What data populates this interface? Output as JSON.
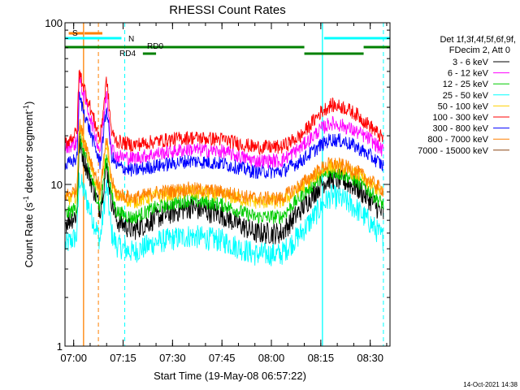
{
  "chart_data": {
    "type": "line",
    "title": "RHESSI Count Rates",
    "xlabel": "Start Time (19-May-08 06:57:22)",
    "ylabel_prefix": "Count Rate (s",
    "ylabel_sup1": "-1",
    "ylabel_mid": " detector segment",
    "ylabel_sup2": "-1",
    "ylabel_suffix": ")",
    "y_scale": "log",
    "ylim": [
      1,
      100
    ],
    "xlim": [
      "06:57:22",
      "08:36:00"
    ],
    "x_ticks": [
      "07:00",
      "07:15",
      "07:30",
      "07:45",
      "08:00",
      "08:15",
      "08:30"
    ],
    "y_ticks": [
      "1",
      "10",
      "100"
    ],
    "legend_header_1": "Det 1f,3f,4f,5f,6f,9f,",
    "legend_header_2": "FDecim 2, Att 0",
    "legend_position": "right",
    "footer_timestamp": "14-Oct-2021 14:38",
    "series": [
      {
        "name": "3 - 6 keV",
        "color": "#000000",
        "key_times": [
          "06:57:30",
          "07:01:00",
          "07:01:40",
          "07:08:00",
          "07:10:00",
          "07:11:30",
          "07:13:00",
          "07:18:00",
          "07:25:00",
          "07:35:00",
          "07:45:00",
          "07:55:00",
          "08:03:00",
          "08:09:00",
          "08:15:00",
          "08:18:00",
          "08:22:00",
          "08:26:00",
          "08:30:00",
          "08:34:00"
        ],
        "values": [
          5.8,
          6.5,
          18,
          7,
          13,
          8,
          6,
          5.2,
          6.2,
          7.2,
          6.5,
          5,
          5,
          7,
          10,
          11,
          10.5,
          9.5,
          8,
          6.5
        ]
      },
      {
        "name": "6 - 12 keV",
        "color": "#ff00ff",
        "key_times": [
          "06:57:30",
          "07:01:00",
          "07:01:40",
          "07:08:00",
          "07:10:00",
          "07:11:30",
          "07:13:00",
          "07:18:00",
          "07:25:00",
          "07:35:00",
          "07:45:00",
          "07:55:00",
          "08:03:00",
          "08:09:00",
          "08:15:00",
          "08:18:00",
          "08:22:00",
          "08:26:00",
          "08:30:00",
          "08:34:00"
        ],
        "values": [
          17,
          18,
          45,
          16,
          38,
          17,
          15,
          14.5,
          15.5,
          16.5,
          16,
          14,
          14,
          17,
          22,
          24,
          23,
          21,
          19,
          16
        ]
      },
      {
        "name": "12 - 25 keV",
        "color": "#00cc00",
        "key_times": [
          "06:57:30",
          "07:01:00",
          "07:01:40",
          "07:08:00",
          "07:10:00",
          "07:11:30",
          "07:13:00",
          "07:18:00",
          "07:25:00",
          "07:35:00",
          "07:45:00",
          "07:55:00",
          "08:03:00",
          "08:09:00",
          "08:15:00",
          "08:18:00",
          "08:22:00",
          "08:26:00",
          "08:30:00",
          "08:34:00"
        ],
        "values": [
          6.5,
          7.2,
          20,
          7.2,
          15,
          8.5,
          6.8,
          6.2,
          7.2,
          8,
          7.5,
          6.3,
          6.3,
          8.5,
          11,
          12,
          11.5,
          10.5,
          9,
          7.5
        ]
      },
      {
        "name": "25 - 50 keV",
        "color": "#00ffff",
        "key_times": [
          "06:57:30",
          "07:01:00",
          "07:01:40",
          "07:08:00",
          "07:10:00",
          "07:11:30",
          "07:13:00",
          "07:18:00",
          "07:25:00",
          "07:35:00",
          "07:45:00",
          "07:55:00",
          "08:03:00",
          "08:09:00",
          "08:15:00",
          "08:18:00",
          "08:22:00",
          "08:26:00",
          "08:30:00",
          "08:34:00"
        ],
        "values": [
          4.2,
          4.8,
          11,
          4.5,
          10,
          5,
          4.2,
          3.8,
          4.4,
          4.8,
          4.5,
          3.7,
          3.7,
          5,
          7.2,
          8.5,
          8,
          7,
          5.8,
          4.6
        ]
      },
      {
        "name": "50 - 100 keV",
        "color": "#ffd000",
        "key_times": [
          "06:57:30",
          "07:01:00",
          "07:01:40",
          "07:08:00",
          "07:10:00",
          "07:11:30",
          "07:13:00",
          "07:18:00",
          "07:25:00",
          "07:35:00",
          "07:45:00",
          "07:55:00",
          "08:03:00",
          "08:09:00",
          "08:15:00",
          "08:18:00",
          "08:22:00",
          "08:26:00",
          "08:30:00",
          "08:34:00"
        ],
        "values": [
          8,
          8.5,
          23,
          8.5,
          18,
          10,
          8.5,
          7.8,
          8.5,
          9,
          8.6,
          7.8,
          7.8,
          9.5,
          12,
          13,
          12.5,
          11.5,
          10,
          8.8
        ]
      },
      {
        "name": "100 - 300 keV",
        "color": "#ff0000",
        "key_times": [
          "06:57:30",
          "07:01:00",
          "07:01:40",
          "07:08:00",
          "07:10:00",
          "07:11:30",
          "07:13:00",
          "07:18:00",
          "07:25:00",
          "07:35:00",
          "07:45:00",
          "07:55:00",
          "08:03:00",
          "08:09:00",
          "08:15:00",
          "08:18:00",
          "08:22:00",
          "08:26:00",
          "08:30:00",
          "08:34:00"
        ],
        "values": [
          18,
          21,
          50,
          19,
          45,
          21,
          18.5,
          17.5,
          18.5,
          19.5,
          19,
          17,
          17,
          20,
          28,
          31,
          30,
          27,
          23,
          19
        ]
      },
      {
        "name": "300 - 800 keV",
        "color": "#0000ff",
        "key_times": [
          "06:57:30",
          "07:01:00",
          "07:01:40",
          "07:08:00",
          "07:10:00",
          "07:11:30",
          "07:13:00",
          "07:18:00",
          "07:25:00",
          "07:35:00",
          "07:45:00",
          "07:55:00",
          "08:03:00",
          "08:09:00",
          "08:15:00",
          "08:18:00",
          "08:22:00",
          "08:26:00",
          "08:30:00",
          "08:34:00"
        ],
        "values": [
          13,
          14.5,
          35,
          13.5,
          30,
          15,
          13,
          12.2,
          13,
          14,
          13.5,
          12,
          12,
          14,
          17.5,
          19,
          18.5,
          17,
          15,
          13
        ]
      },
      {
        "name": "800 - 7000 keV",
        "color": "#ff8000",
        "key_times": [
          "06:57:30",
          "07:01:00",
          "07:01:40",
          "07:08:00",
          "07:10:00",
          "07:11:30",
          "07:13:00",
          "07:18:00",
          "07:25:00",
          "07:35:00",
          "07:45:00",
          "07:55:00",
          "08:03:00",
          "08:09:00",
          "08:15:00",
          "08:18:00",
          "08:22:00",
          "08:26:00",
          "08:30:00",
          "08:34:00"
        ],
        "values": [
          8.5,
          9.3,
          24,
          9.2,
          19,
          10.5,
          8.8,
          8.2,
          8.9,
          9.4,
          9,
          8.2,
          8.2,
          10,
          12.5,
          13.5,
          13,
          12,
          10.5,
          9.2
        ]
      },
      {
        "name": "7000 - 15000 keV",
        "color": "#8b4513",
        "key_times": [],
        "values": []
      }
    ],
    "annotations": {
      "attenuator_state": {
        "label": "S",
        "color": "#ff8000",
        "bar_start": "06:58:30",
        "bar_end": "07:03:00"
      },
      "saa_bars": [
        {
          "label": "N",
          "color": "#00ffff",
          "level": "upper",
          "start": "06:57:22",
          "end": "07:14:30"
        },
        {
          "label": "",
          "color": "#00ffff",
          "level": "upper",
          "start": "08:16:00",
          "end": "08:36:00"
        }
      ],
      "flag_bars": [
        {
          "label": "",
          "color": "#008000",
          "level": "middle",
          "start": "06:57:22",
          "end": "08:10:00"
        },
        {
          "label": "",
          "color": "#008000",
          "level": "middle",
          "start": "08:28:00",
          "end": "08:36:00"
        },
        {
          "label": "",
          "color": "#008000",
          "level": "lower",
          "start": "08:10:00",
          "end": "08:28:00"
        },
        {
          "label": "RD4",
          "color": "#008000",
          "level": "lower",
          "start": "07:21:00",
          "end": "07:25:00"
        },
        {
          "label": "RD0",
          "color": "#008000",
          "level": "mid-label",
          "start": "07:21:00",
          "end": "07:21:00"
        }
      ],
      "vertical_lines": [
        {
          "time": "07:03:00",
          "color": "#ff8000",
          "style": "solid"
        },
        {
          "time": "07:07:30",
          "color": "#ff8000",
          "style": "dashed"
        },
        {
          "time": "07:15:30",
          "color": "#00ffff",
          "style": "dashed"
        },
        {
          "time": "08:15:30",
          "color": "#00ffff",
          "style": "solid"
        },
        {
          "time": "08:34:00",
          "color": "#00ffff",
          "style": "dashed"
        }
      ]
    }
  }
}
